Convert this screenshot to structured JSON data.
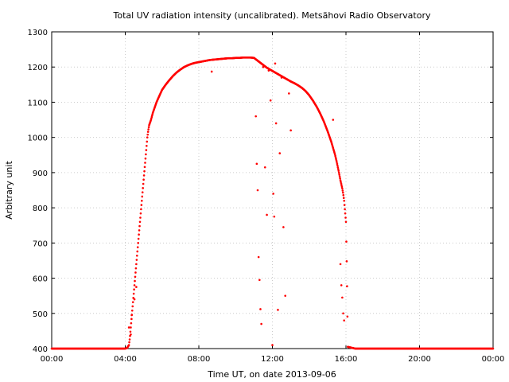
{
  "chart_data": {
    "type": "scatter",
    "title": "Total UV radiation intensity (uncalibrated). Metsähovi Radio Observatory",
    "xlabel": "Time UT, on date 2013-09-06",
    "ylabel": "Arbitrary unit",
    "xlim": [
      0,
      24
    ],
    "ylim": [
      400,
      1300
    ],
    "x_ticks": [
      {
        "value": 0,
        "label": "00:00"
      },
      {
        "value": 4,
        "label": "04:00"
      },
      {
        "value": 8,
        "label": "08:00"
      },
      {
        "value": 12,
        "label": "12:00"
      },
      {
        "value": 16,
        "label": "16:00"
      },
      {
        "value": 20,
        "label": "20:00"
      },
      {
        "value": 24,
        "label": "00:00"
      }
    ],
    "y_ticks": [
      400,
      500,
      600,
      700,
      800,
      900,
      1000,
      1100,
      1200,
      1300
    ],
    "grid": true,
    "color": "#ff0000",
    "series": [
      {
        "x": [
          0.0,
          0.5,
          1.0,
          1.5,
          2.0,
          2.5,
          3.0,
          3.5,
          4.0,
          4.1,
          4.2,
          4.25,
          4.3,
          4.35,
          4.4,
          4.45,
          4.5,
          4.55,
          4.6,
          4.65,
          4.7,
          4.75,
          4.8,
          4.85,
          4.9,
          4.95,
          5.0,
          5.05,
          5.1,
          5.15,
          5.2,
          5.25,
          5.3,
          5.4,
          5.5,
          5.6,
          5.7,
          5.8,
          6.0,
          6.2,
          6.4,
          6.6,
          6.8,
          7.0,
          7.2,
          7.4,
          7.6,
          7.8,
          8.0,
          8.2,
          8.4,
          8.6,
          8.8,
          9.0,
          9.2,
          9.4,
          9.6,
          9.8,
          10.0,
          10.2,
          10.4,
          10.6,
          10.8,
          11.0,
          11.1,
          11.2,
          11.3,
          11.4,
          11.5,
          11.6,
          11.7,
          11.8,
          11.9,
          12.0,
          12.1,
          12.2,
          12.3,
          12.4,
          12.5,
          12.6,
          12.7,
          12.8,
          12.9,
          13.0,
          13.2,
          13.4,
          13.6,
          13.8,
          14.0,
          14.2,
          14.4,
          14.6,
          14.8,
          15.0,
          15.2,
          15.4,
          15.5,
          15.6,
          15.7,
          15.8,
          15.85,
          15.9,
          15.95,
          16.0,
          16.05,
          16.1,
          16.5,
          17.0,
          18.0,
          19.0,
          20.0,
          21.0,
          22.0,
          23.0,
          24.0
        ],
        "y": [
          400,
          400,
          400,
          400,
          400,
          400,
          400,
          400,
          400,
          402,
          410,
          430,
          460,
          490,
          520,
          550,
          580,
          610,
          640,
          670,
          700,
          730,
          760,
          790,
          820,
          850,
          880,
          910,
          940,
          970,
          1000,
          1020,
          1035,
          1050,
          1070,
          1085,
          1100,
          1112,
          1135,
          1150,
          1163,
          1175,
          1185,
          1193,
          1200,
          1205,
          1209,
          1212,
          1214,
          1216,
          1218,
          1220,
          1221,
          1222,
          1223,
          1224,
          1225,
          1225,
          1226,
          1226,
          1227,
          1227,
          1227,
          1226,
          1222,
          1218,
          1214,
          1210,
          1206,
          1202,
          1198,
          1195,
          1192,
          1189,
          1186,
          1183,
          1180,
          1177,
          1174,
          1171,
          1168,
          1165,
          1162,
          1159,
          1154,
          1148,
          1141,
          1132,
          1120,
          1105,
          1088,
          1068,
          1045,
          1018,
          988,
          952,
          930,
          905,
          878,
          855,
          840,
          820,
          790,
          760,
          620,
          405,
          400,
          400,
          400,
          400,
          400,
          400,
          400,
          400,
          400
        ]
      },
      {
        "x": [
          4.2,
          4.3,
          4.35,
          4.5,
          4.6,
          8.7,
          11.1,
          11.15,
          11.2,
          11.25,
          11.3,
          11.35,
          11.4,
          11.5,
          11.6,
          11.7,
          11.8,
          11.9,
          12.0,
          12.05,
          12.1,
          12.15,
          12.2,
          12.3,
          12.4,
          12.5,
          12.6,
          12.7,
          12.8,
          12.9,
          13.0,
          15.3,
          15.7,
          15.75,
          15.8,
          15.85,
          15.9
        ],
        "y": [
          460,
          440,
          495,
          540,
          575,
          1187,
          1060,
          925,
          850,
          660,
          595,
          512,
          470,
          1200,
          915,
          780,
          1190,
          1105,
          410,
          840,
          775,
          1210,
          1040,
          510,
          955,
          1170,
          745,
          550,
          1165,
          1125,
          1020,
          1050,
          640,
          580,
          545,
          500,
          480
        ]
      }
    ]
  }
}
